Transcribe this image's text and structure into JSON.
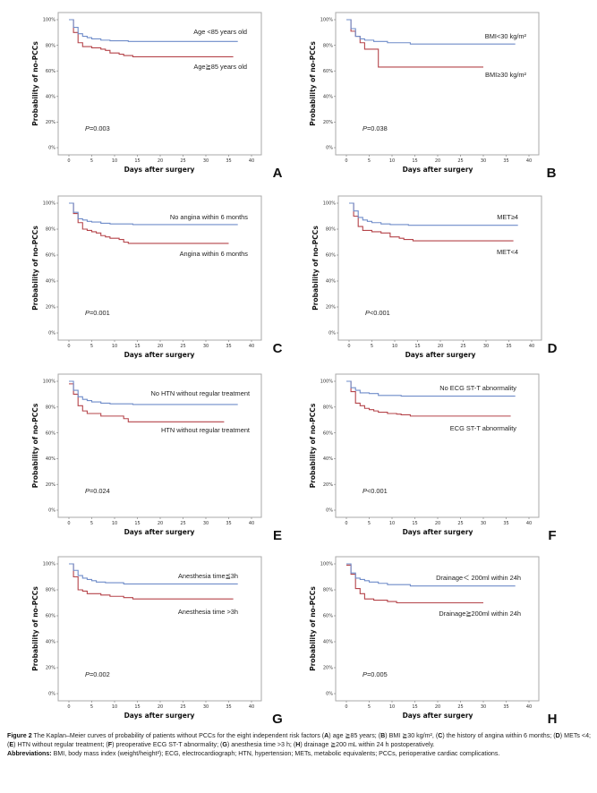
{
  "figure": {
    "caption_label": "Figure 2",
    "caption_text_parts": [
      " The Kaplan–Meier curves of probability of patients without PCCs for the eight independent risk factors (",
      "A",
      ") age ≧85 years; (",
      "B",
      ") BMI ≧30 kg/m², (",
      "C",
      ") the history of angina within 6 months; (",
      "D",
      ") METs <4; (",
      "E",
      ") HTN without regular treatment; (",
      "F",
      ") preoperative ECG ST-T abnormality; (",
      "G",
      ") anesthesia time >3 h; (",
      "H",
      ") drainage ≧200 mL within 24 h postoperatively."
    ],
    "abbreviations_label": "Abbreviations:",
    "abbreviations_text": " BMI, body mass index (weight/height²); ECG, electrocardiograph; HTN, hypertension; METs, metabolic equivalents; PCCs, perioperative cardiac complications."
  },
  "colors": {
    "low_risk": "#6f8cc9",
    "high_risk": "#b5444a",
    "frame": "#a9a9a9"
  },
  "chart_data": [
    {
      "type": "line",
      "panel": "A",
      "title": "",
      "xlabel": "Days after surgery",
      "ylabel": "Probability of  no-PCCs",
      "xlim": [
        0,
        40
      ],
      "ylim": [
        0,
        100
      ],
      "xticks": [
        0,
        5,
        10,
        15,
        20,
        25,
        30,
        35,
        40
      ],
      "yticks": [
        "0%",
        "20%",
        "40%",
        "60%",
        "80%",
        "100%"
      ],
      "p_value": {
        "prefix": "P",
        "text": "=0.003"
      },
      "series": [
        {
          "name": "Age <85 years old",
          "role": "low_risk",
          "x": [
            0,
            1,
            2,
            3,
            4,
            5,
            7,
            9,
            13,
            37
          ],
          "y": [
            100,
            94,
            89,
            87,
            86,
            85,
            84,
            83.5,
            83,
            83
          ]
        },
        {
          "name": "Age≧85 years old",
          "role": "high_risk",
          "x": [
            0,
            1,
            2,
            3,
            5,
            7,
            8,
            9,
            11,
            12,
            14,
            36
          ],
          "y": [
            100,
            90,
            82,
            79,
            78,
            77,
            76,
            74,
            73,
            72,
            71,
            71
          ]
        }
      ]
    },
    {
      "type": "line",
      "panel": "B",
      "title": "",
      "xlabel": "Days after surgery",
      "ylabel": "Probability of  no-PCCs",
      "xlim": [
        0,
        40
      ],
      "ylim": [
        0,
        100
      ],
      "xticks": [
        0,
        5,
        10,
        15,
        20,
        25,
        30,
        35,
        40
      ],
      "yticks": [
        "0%",
        "20%",
        "40%",
        "60%",
        "80%",
        "100%"
      ],
      "p_value": {
        "prefix": "P",
        "text": "=0.038"
      },
      "series": [
        {
          "name": "BMI<30 kg/m²",
          "role": "low_risk",
          "x": [
            0,
            1,
            2,
            3,
            4,
            6,
            9,
            14,
            37
          ],
          "y": [
            100,
            93,
            87,
            85,
            84,
            83,
            82,
            81,
            81
          ]
        },
        {
          "name": "BMI≥30 kg/m²",
          "role": "high_risk",
          "x": [
            0,
            1,
            2,
            3,
            4,
            7,
            30
          ],
          "y": [
            100,
            91,
            87,
            82,
            77,
            63,
            63
          ]
        }
      ]
    },
    {
      "type": "line",
      "panel": "C",
      "title": "",
      "xlabel": "Days after surgery",
      "ylabel": "Probability of  no-PCCs",
      "xlim": [
        0,
        40
      ],
      "ylim": [
        0,
        100
      ],
      "xticks": [
        0,
        5,
        10,
        15,
        20,
        25,
        30,
        35,
        40
      ],
      "yticks": [
        "0%",
        "20%",
        "40%",
        "60%",
        "80%",
        "100%"
      ],
      "p_value": {
        "prefix": "P",
        "text": "=0.001"
      },
      "series": [
        {
          "name": "No angina within 6 months",
          "role": "low_risk",
          "x": [
            0,
            1,
            2,
            3,
            4,
            5,
            7,
            9,
            14,
            37
          ],
          "y": [
            100,
            93,
            88,
            87,
            86,
            85.5,
            84.5,
            84,
            83.5,
            83.5
          ]
        },
        {
          "name": "Angina within 6 months",
          "role": "high_risk",
          "x": [
            0,
            1,
            2,
            3,
            4,
            5,
            6,
            7,
            8,
            9,
            11,
            12,
            13,
            35
          ],
          "y": [
            100,
            92,
            85,
            80,
            79,
            78,
            77,
            75,
            74,
            73,
            72,
            70,
            69,
            69
          ]
        }
      ]
    },
    {
      "type": "line",
      "panel": "D",
      "title": "",
      "xlabel": "Days after surgery",
      "ylabel": "Probability of  no-PCCs",
      "xlim": [
        0,
        40
      ],
      "ylim": [
        0,
        100
      ],
      "xticks": [
        0,
        5,
        10,
        15,
        20,
        25,
        30,
        35,
        40
      ],
      "yticks": [
        "0%",
        "20%",
        "40%",
        "60%",
        "80%",
        "100%"
      ],
      "p_value": {
        "prefix": "P",
        "text": "<0.001"
      },
      "series": [
        {
          "name": "MET≥4",
          "role": "low_risk",
          "x": [
            0,
            1,
            2,
            3,
            4,
            5,
            7,
            9,
            13,
            37
          ],
          "y": [
            100,
            94,
            89,
            87,
            86,
            85,
            84,
            83.5,
            83,
            83
          ]
        },
        {
          "name": "MET<4",
          "role": "high_risk",
          "x": [
            0,
            1,
            2,
            3,
            5,
            7,
            9,
            11,
            12,
            14,
            36
          ],
          "y": [
            100,
            90,
            82,
            79,
            78,
            77,
            74,
            73,
            72,
            71,
            71
          ]
        }
      ]
    },
    {
      "type": "line",
      "panel": "E",
      "title": "",
      "xlabel": "Days after surgery",
      "ylabel": "Probability of no-PCCs",
      "xlim": [
        0,
        40
      ],
      "ylim": [
        0,
        100
      ],
      "xticks": [
        0,
        5,
        10,
        15,
        20,
        25,
        30,
        35,
        40
      ],
      "yticks": [
        "0%",
        "20%",
        "40%",
        "60%",
        "80%",
        "100%"
      ],
      "p_value": {
        "prefix": "P",
        "text": "=0.024"
      },
      "series": [
        {
          "name": "No HTN without regular treatment",
          "role": "low_risk",
          "x": [
            0,
            1,
            2,
            3,
            4,
            5,
            7,
            9,
            14,
            37
          ],
          "y": [
            100,
            93,
            88,
            86,
            85,
            84,
            83,
            82.5,
            82,
            82
          ]
        },
        {
          "name": "HTN without regular treatment",
          "role": "high_risk",
          "x": [
            0,
            1,
            2,
            3,
            4,
            7,
            12,
            13,
            34
          ],
          "y": [
            98,
            90,
            81,
            77,
            75,
            73,
            71,
            68.5,
            68.5
          ]
        }
      ]
    },
    {
      "type": "line",
      "panel": "F",
      "title": "",
      "xlabel": "Days after surgery",
      "ylabel": "Probability of no-PCCs",
      "xlim": [
        0,
        40
      ],
      "ylim": [
        0,
        100
      ],
      "xticks": [
        0,
        5,
        10,
        15,
        20,
        25,
        30,
        35,
        40
      ],
      "yticks": [
        "0%",
        "20%",
        "40%",
        "60%",
        "80%",
        "100%"
      ],
      "p_value": {
        "prefix": "P",
        "text": "<0.001"
      },
      "series": [
        {
          "name": "No ECG ST-T abnormality",
          "role": "low_risk",
          "x": [
            0,
            1,
            2,
            3,
            5,
            7,
            12,
            37
          ],
          "y": [
            100,
            95,
            93,
            91,
            90.5,
            89,
            88.5,
            88.5
          ]
        },
        {
          "name": "ECG ST-T abnormality",
          "role": "high_risk",
          "x": [
            0,
            1,
            2,
            3,
            4,
            5,
            6,
            7,
            9,
            11,
            12,
            14,
            36
          ],
          "y": [
            100,
            92,
            83,
            81,
            79,
            78,
            77,
            76,
            75,
            74.5,
            74,
            73,
            73
          ]
        }
      ]
    },
    {
      "type": "line",
      "panel": "G",
      "title": "",
      "xlabel": "Days after surgery",
      "ylabel": "Probability of no-PCCs",
      "xlim": [
        0,
        40
      ],
      "ylim": [
        0,
        100
      ],
      "xticks": [
        0,
        5,
        10,
        15,
        20,
        25,
        30,
        35,
        40
      ],
      "yticks": [
        "0%",
        "20%",
        "40%",
        "60%",
        "80%",
        "100%"
      ],
      "p_value": {
        "prefix": "P",
        "text": "=0.002"
      },
      "series": [
        {
          "name": "Anesthesia time≦3h",
          "role": "low_risk",
          "x": [
            0,
            1,
            2,
            3,
            4,
            5,
            6,
            8,
            12,
            37
          ],
          "y": [
            100,
            95,
            91,
            89,
            88,
            87,
            86,
            85.5,
            84.5,
            84.5
          ]
        },
        {
          "name": "Anesthesia time >3h",
          "role": "high_risk",
          "x": [
            0,
            1,
            2,
            3,
            4,
            7,
            9,
            12,
            14,
            36
          ],
          "y": [
            100,
            90,
            80,
            79,
            77,
            76,
            75,
            74,
            73,
            73
          ]
        }
      ]
    },
    {
      "type": "line",
      "panel": "H",
      "title": "",
      "xlabel": "Days after surgery",
      "ylabel": "Probability of no-PCCs",
      "xlim": [
        0,
        40
      ],
      "ylim": [
        0,
        100
      ],
      "xticks": [
        0,
        5,
        10,
        15,
        20,
        25,
        30,
        35,
        40
      ],
      "yticks": [
        "0%",
        "20%",
        "40%",
        "60%",
        "80%",
        "100%"
      ],
      "p_value": {
        "prefix": "P",
        "text": "=0.005"
      },
      "series": [
        {
          "name": "Drainage＜ 200ml within 24h",
          "role": "low_risk",
          "x": [
            0,
            1,
            2,
            3,
            4,
            5,
            7,
            9,
            14,
            37
          ],
          "y": [
            100,
            93,
            89,
            88,
            87,
            86,
            85,
            84,
            83,
            83
          ]
        },
        {
          "name": "Drainage≧200ml within 24h",
          "role": "high_risk",
          "x": [
            0,
            1,
            2,
            3,
            4,
            6,
            9,
            11,
            30
          ],
          "y": [
            99,
            92,
            81,
            77,
            73,
            72,
            71,
            70,
            70
          ]
        }
      ]
    }
  ]
}
